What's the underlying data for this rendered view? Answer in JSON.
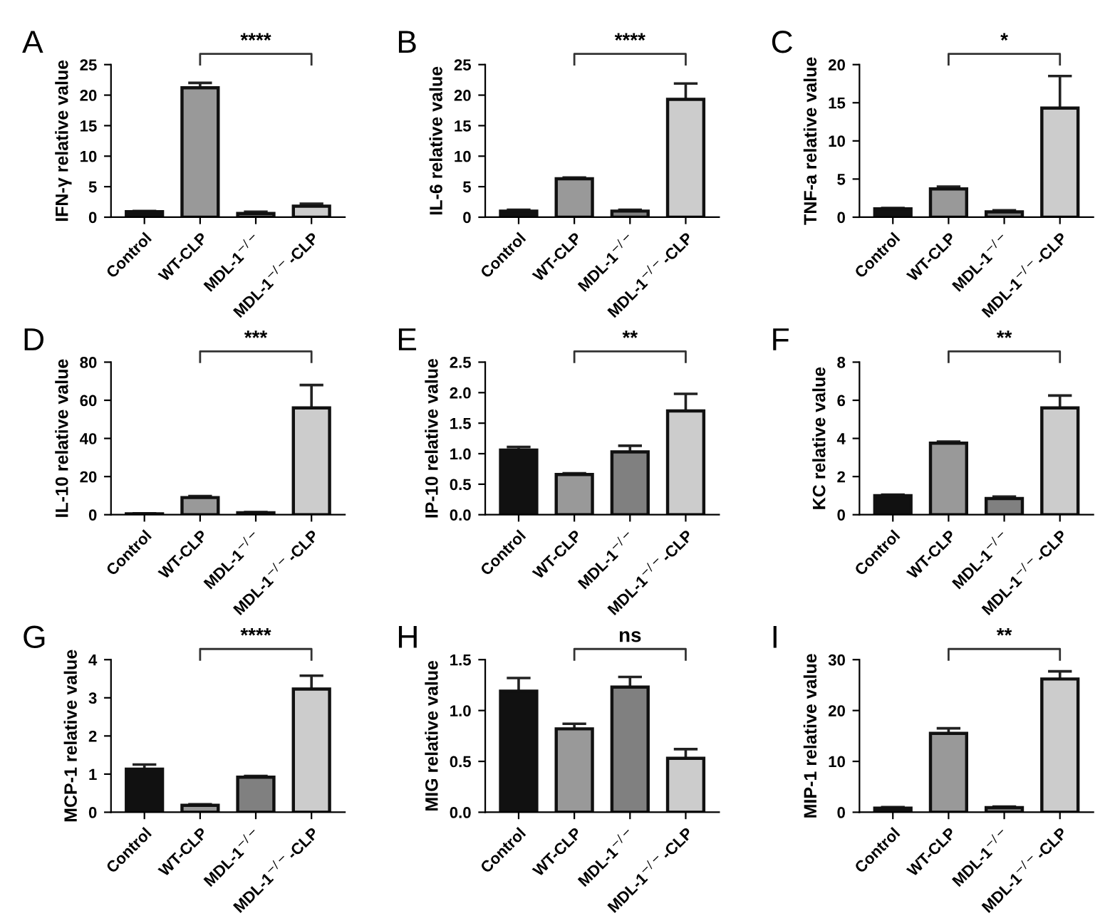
{
  "chart_data": [
    {
      "type": "bar",
      "title": "A",
      "ylabel": "IFN-γ relative value",
      "categories": [
        "Control",
        "WT-CLP",
        "MDL-1$^{−/−}$",
        "MDL-1$^{−/−}$-CLP"
      ],
      "colors": [
        "#111111",
        "#999999",
        "#808080",
        "#cccccc"
      ],
      "values": [
        0.9,
        21.2,
        0.6,
        1.8
      ],
      "errors": [
        0.1,
        0.8,
        0.3,
        0.4
      ],
      "ylim": [
        0,
        25
      ],
      "yticks": [
        0,
        5,
        10,
        15,
        20,
        25
      ],
      "annotations": [
        "****"
      ],
      "grid": false,
      "legend": false
    },
    {
      "type": "bar",
      "title": "B",
      "ylabel": "IL-6 relative value",
      "categories": [
        "Control",
        "WT-CLP",
        "MDL-1$^{−/−}$",
        "MDL-1$^{−/−}$-CLP"
      ],
      "colors": [
        "#111111",
        "#999999",
        "#808080",
        "#cccccc"
      ],
      "values": [
        1.0,
        6.3,
        1.0,
        19.3
      ],
      "errors": [
        0.2,
        0.2,
        0.2,
        2.6
      ],
      "ylim": [
        0,
        25
      ],
      "yticks": [
        0,
        5,
        10,
        15,
        20,
        25
      ],
      "annotations": [
        "****"
      ],
      "grid": false,
      "legend": false
    },
    {
      "type": "bar",
      "title": "C",
      "ylabel": "TNF-a relative value",
      "categories": [
        "Control",
        "WT-CLP",
        "MDL-1$^{−/−}$",
        "MDL-1$^{−/−}$-CLP"
      ],
      "colors": [
        "#111111",
        "#999999",
        "#808080",
        "#cccccc"
      ],
      "values": [
        1.1,
        3.7,
        0.7,
        14.3
      ],
      "errors": [
        0.1,
        0.3,
        0.2,
        4.2
      ],
      "ylim": [
        0,
        20
      ],
      "yticks": [
        0,
        5,
        10,
        15,
        20
      ],
      "annotations": [
        "*"
      ],
      "grid": false,
      "legend": false
    },
    {
      "type": "bar",
      "title": "D",
      "ylabel": "IL-10 relative value",
      "categories": [
        "Control",
        "WT-CLP",
        "MDL-1$^{−/−}$",
        "MDL-1$^{−/−}$-CLP"
      ],
      "colors": [
        "#111111",
        "#999999",
        "#808080",
        "#cccccc"
      ],
      "values": [
        0.5,
        9,
        1,
        56
      ],
      "errors": [
        0.2,
        0.8,
        0.4,
        12
      ],
      "ylim": [
        0,
        80
      ],
      "yticks": [
        0,
        20,
        40,
        60,
        80
      ],
      "annotations": [
        "***"
      ],
      "grid": false,
      "legend": false
    },
    {
      "type": "bar",
      "title": "E",
      "ylabel": "IP-10 relative value",
      "categories": [
        "Control",
        "WT-CLP",
        "MDL-1$^{−/−}$",
        "MDL-1$^{−/−}$-CLP"
      ],
      "colors": [
        "#111111",
        "#999999",
        "#808080",
        "#cccccc"
      ],
      "values": [
        1.06,
        0.66,
        1.03,
        1.7
      ],
      "errors": [
        0.05,
        0.02,
        0.1,
        0.28
      ],
      "ylim": [
        0,
        2.5
      ],
      "yticks": [
        {
          "value": 0,
          "label": "0.0"
        },
        0.5,
        {
          "value": 1,
          "label": "1.0"
        },
        1.5,
        {
          "value": 2,
          "label": "2.0"
        },
        2.5
      ],
      "annotations": [
        "**"
      ],
      "grid": false,
      "legend": false
    },
    {
      "type": "bar",
      "title": "F",
      "ylabel": "KC relative value",
      "categories": [
        "Control",
        "WT-CLP",
        "MDL-1$^{−/−}$",
        "MDL-1$^{−/−}$-CLP"
      ],
      "colors": [
        "#111111",
        "#999999",
        "#808080",
        "#cccccc"
      ],
      "values": [
        1.0,
        3.75,
        0.85,
        5.6
      ],
      "errors": [
        0.05,
        0.08,
        0.1,
        0.65
      ],
      "ylim": [
        0,
        8
      ],
      "yticks": [
        0,
        2,
        4,
        6,
        8
      ],
      "annotations": [
        "**"
      ],
      "grid": false,
      "legend": false
    },
    {
      "type": "bar",
      "title": "G",
      "ylabel": "MCP-1 relative value",
      "categories": [
        "Control",
        "WT-CLP",
        "MDL-1$^{−/−}$",
        "MDL-1$^{−/−}$-CLP"
      ],
      "colors": [
        "#111111",
        "#999999",
        "#808080",
        "#cccccc"
      ],
      "values": [
        1.13,
        0.18,
        0.92,
        3.23
      ],
      "errors": [
        0.12,
        0.03,
        0.03,
        0.35
      ],
      "ylim": [
        0,
        4
      ],
      "yticks": [
        0,
        1,
        2,
        3,
        4
      ],
      "annotations": [
        "****"
      ],
      "grid": false,
      "legend": false
    },
    {
      "type": "bar",
      "title": "H",
      "ylabel": "MIG relative value",
      "categories": [
        "Control",
        "WT-CLP",
        "MDL-1$^{−/−}$",
        "MDL-1$^{−/−}$-CLP"
      ],
      "colors": [
        "#111111",
        "#999999",
        "#808080",
        "#cccccc"
      ],
      "values": [
        1.19,
        0.82,
        1.23,
        0.53
      ],
      "errors": [
        0.13,
        0.05,
        0.1,
        0.09
      ],
      "ylim": [
        0,
        1.5
      ],
      "yticks": [
        {
          "value": 0,
          "label": "0.0"
        },
        0.5,
        {
          "value": 1,
          "label": "1.0"
        },
        1.5
      ],
      "annotations": [
        "ns"
      ],
      "grid": false,
      "legend": false
    },
    {
      "type": "bar",
      "title": "I",
      "ylabel": "MIP-1 relative value",
      "categories": [
        "Control",
        "WT-CLP",
        "MDL-1$^{−/−}$",
        "MDL-1$^{−/−}$-CLP"
      ],
      "colors": [
        "#111111",
        "#999999",
        "#808080",
        "#cccccc"
      ],
      "values": [
        0.8,
        15.5,
        0.9,
        26.2
      ],
      "errors": [
        0.2,
        1.0,
        0.2,
        1.5
      ],
      "ylim": [
        0,
        30
      ],
      "yticks": [
        0,
        10,
        20,
        30
      ],
      "annotations": [
        "**"
      ],
      "grid": false,
      "legend": false
    }
  ]
}
